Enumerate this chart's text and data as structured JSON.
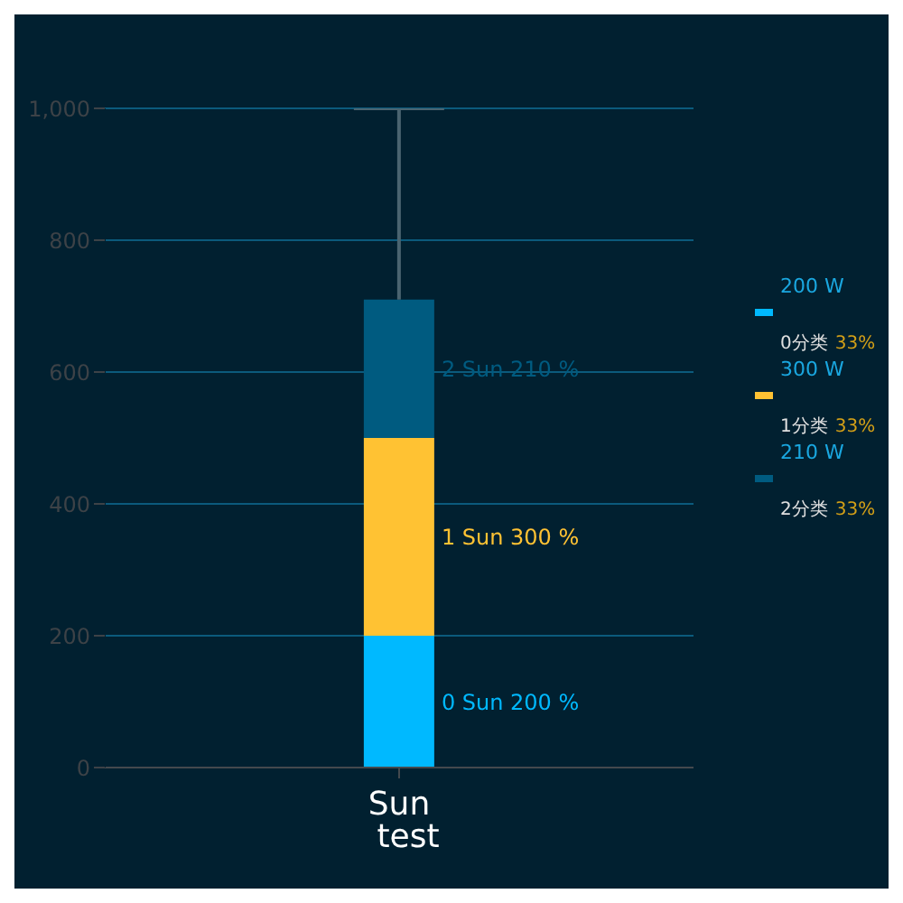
{
  "chart_data": {
    "type": "bar",
    "stacked": true,
    "categories": [
      "Sun test"
    ],
    "series": [
      {
        "name": "0分类",
        "color": "#00b9ff",
        "values": [
          200
        ]
      },
      {
        "name": "1分类",
        "color": "#ffc233",
        "values": [
          300
        ]
      },
      {
        "name": "2分类",
        "color": "#005b80",
        "values": [
          210
        ],
        "errors": [
          [
            710,
            1000
          ]
        ]
      }
    ],
    "annotations": [
      "200 W",
      "33%",
      "300 W",
      "33%",
      "210 W",
      "33%",
      "0 Sun 200 %",
      "1 Sun 300 %",
      "2 Sun 210 %"
    ],
    "ylim": [
      0,
      1000
    ],
    "yticks": [
      0,
      200,
      400,
      600,
      800,
      {
        "value": 1000,
        "label": "1,000"
      }
    ],
    "grid": "y",
    "legend": "right"
  }
}
